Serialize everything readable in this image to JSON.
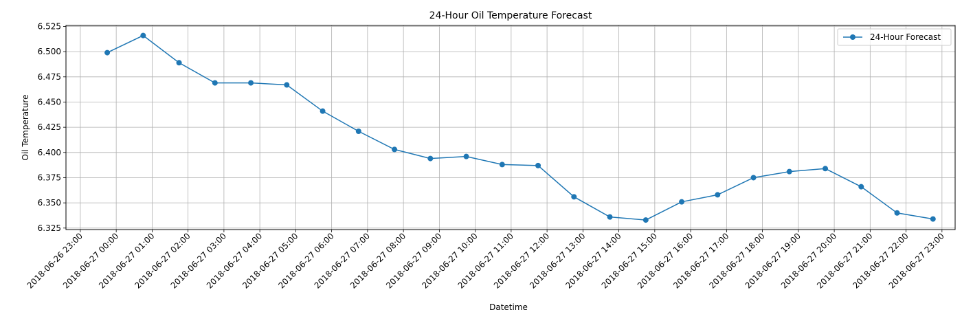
{
  "chart_data": {
    "type": "line",
    "title": "24-Hour Oil Temperature Forecast",
    "xlabel": "Datetime",
    "ylabel": "Oil Temperature",
    "x_ticks": [
      "2018-06-26 23:00",
      "2018-06-27 00:00",
      "2018-06-27 01:00",
      "2018-06-27 02:00",
      "2018-06-27 03:00",
      "2018-06-27 04:00",
      "2018-06-27 05:00",
      "2018-06-27 06:00",
      "2018-06-27 07:00",
      "2018-06-27 08:00",
      "2018-06-27 09:00",
      "2018-06-27 10:00",
      "2018-06-27 11:00",
      "2018-06-27 12:00",
      "2018-06-27 13:00",
      "2018-06-27 14:00",
      "2018-06-27 15:00",
      "2018-06-27 16:00",
      "2018-06-27 17:00",
      "2018-06-27 18:00",
      "2018-06-27 19:00",
      "2018-06-27 20:00",
      "2018-06-27 21:00",
      "2018-06-27 22:00",
      "2018-06-27 23:00"
    ],
    "y_ticks": [
      "6.325",
      "6.350",
      "6.375",
      "6.400",
      "6.425",
      "6.450",
      "6.475",
      "6.500",
      "6.525"
    ],
    "ylim": [
      6.3235,
      6.526
    ],
    "xlim": [
      "2018-06-26 22:36",
      "2018-06-27 23:22"
    ],
    "grid": true,
    "legend_position": "top-right",
    "series": [
      {
        "name": "24-Hour Forecast",
        "color": "#1f77b4",
        "marker": "circle",
        "x": [
          "2018-06-26 23:45",
          "2018-06-27 00:45",
          "2018-06-27 01:45",
          "2018-06-27 02:45",
          "2018-06-27 03:45",
          "2018-06-27 04:45",
          "2018-06-27 05:45",
          "2018-06-27 06:45",
          "2018-06-27 07:45",
          "2018-06-27 08:45",
          "2018-06-27 09:45",
          "2018-06-27 10:45",
          "2018-06-27 11:45",
          "2018-06-27 12:45",
          "2018-06-27 13:45",
          "2018-06-27 14:45",
          "2018-06-27 15:45",
          "2018-06-27 16:45",
          "2018-06-27 17:45",
          "2018-06-27 18:45",
          "2018-06-27 19:45",
          "2018-06-27 20:45",
          "2018-06-27 21:45",
          "2018-06-27 22:45"
        ],
        "values": [
          6.499,
          6.516,
          6.489,
          6.469,
          6.469,
          6.467,
          6.441,
          6.421,
          6.403,
          6.394,
          6.396,
          6.388,
          6.387,
          6.356,
          6.336,
          6.333,
          6.351,
          6.358,
          6.375,
          6.381,
          6.384,
          6.366,
          6.34,
          6.334
        ]
      }
    ]
  }
}
